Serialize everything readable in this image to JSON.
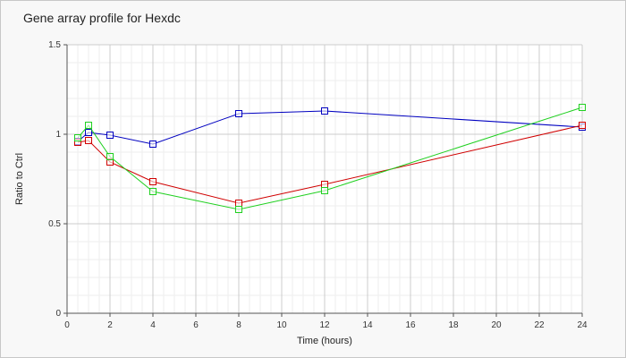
{
  "chart_data": {
    "type": "line",
    "title": "Gene array profile for Hexdc",
    "xlabel": "Time (hours)",
    "ylabel": "Ratio to Ctrl",
    "xlim": [
      0,
      24
    ],
    "ylim": [
      0,
      1.5
    ],
    "x_ticks": [
      0,
      2,
      4,
      6,
      8,
      10,
      12,
      14,
      16,
      18,
      20,
      22,
      24
    ],
    "y_ticks": [
      0,
      0.5,
      1,
      1.5
    ],
    "grid": true,
    "series": [
      {
        "color": "#0000c0",
        "x": [
          0.5,
          1,
          2,
          4,
          8,
          12,
          24
        ],
        "y": [
          0.96,
          1.01,
          0.995,
          0.945,
          1.115,
          1.13,
          1.04
        ]
      },
      {
        "color": "#d00000",
        "x": [
          0.5,
          1,
          2,
          4,
          8,
          12,
          24
        ],
        "y": [
          0.955,
          0.965,
          0.845,
          0.735,
          0.615,
          0.72,
          1.05
        ]
      },
      {
        "color": "#20d020",
        "x": [
          0.5,
          1,
          2,
          4,
          8,
          12,
          24
        ],
        "y": [
          0.98,
          1.05,
          0.875,
          0.68,
          0.58,
          0.685,
          1.15
        ]
      }
    ]
  }
}
